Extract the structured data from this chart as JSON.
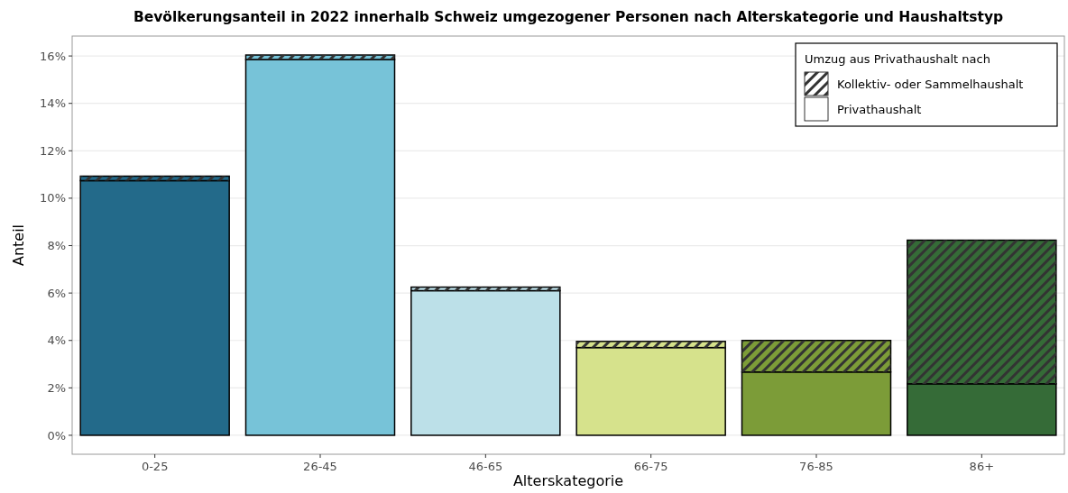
{
  "chart_data": {
    "type": "bar",
    "title": "Bevölkerungsanteil in 2022 innerhalb Schweiz umgezogener Personen nach Alterskategorie und Haushaltstyp",
    "xlabel": "Alterskategorie",
    "ylabel": "Anteil",
    "categories": [
      "0-25",
      "26-45",
      "46-65",
      "66-75",
      "76-85",
      "86+"
    ],
    "stacked": true,
    "legend": "top right",
    "legend_title": "Umzug aus Privathaushalt nach",
    "grid": "y",
    "ylim": [
      -0.8,
      16.84
    ],
    "yticks": [
      {
        "value": 0,
        "label": "0%"
      },
      {
        "value": 2,
        "label": "2%"
      },
      {
        "value": 4,
        "label": "4%"
      },
      {
        "value": 6,
        "label": "6%"
      },
      {
        "value": 8,
        "label": "8%"
      },
      {
        "value": 10,
        "label": "10%"
      },
      {
        "value": 12,
        "label": "12%"
      },
      {
        "value": 14,
        "label": "14%"
      },
      {
        "value": 16,
        "label": "16%"
      }
    ],
    "series": [
      {
        "name": "Privathaushalt",
        "colors": [
          "#236a8a",
          "#77c3d8",
          "#bce0e8",
          "#d6e28c",
          "#7c9c38",
          "#356b37"
        ],
        "values": [
          10.74,
          15.85,
          6.1,
          3.7,
          2.67,
          2.17
        ]
      },
      {
        "name": "Kollektiv- oder Sammelhaushalt",
        "colors": [
          "#236a8a",
          "#77c3d8",
          "#bce0e8",
          "#d6e28c",
          "#7c9c38",
          "#356b37"
        ],
        "values": [
          0.19,
          0.19,
          0.15,
          0.26,
          1.33,
          6.06
        ]
      }
    ]
  }
}
